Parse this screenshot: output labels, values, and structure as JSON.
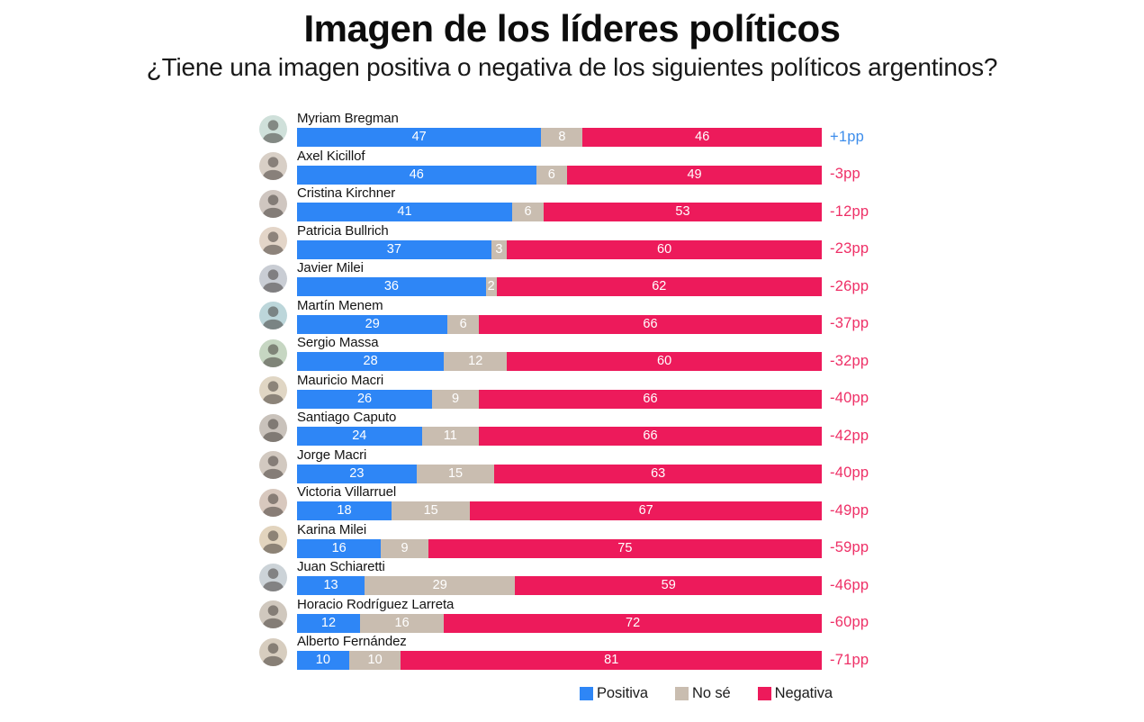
{
  "header": {
    "title": "Imagen de los líderes políticos",
    "subtitle": "¿Tiene una imagen positiva o negativa de los siguientes políticos argentinos?"
  },
  "legend": [
    {
      "label": "Positiva",
      "color": "#2e86f6"
    },
    {
      "label": "No sé",
      "color": "#c9bdb0"
    },
    {
      "label": "Negativa",
      "color": "#ed1a5b"
    }
  ],
  "colors": {
    "positiva": "#2e86f6",
    "no_se": "#c9bdb0",
    "negativa": "#ed1a5b",
    "net_positive_text": "#3d8deb",
    "net_negative_text": "#ee2f66"
  },
  "chart_data": {
    "type": "bar",
    "orientation": "horizontal",
    "stacked": true,
    "normalized_to_100": true,
    "title": "Imagen de los líderes políticos",
    "subtitle": "¿Tiene una imagen positiva o negativa de los siguientes políticos argentinos?",
    "series_names": [
      "Positiva",
      "No sé",
      "Negativa"
    ],
    "legend_position": "bottom-center",
    "grid": false,
    "rows": [
      {
        "name": "Myriam Bregman",
        "positiva": 47,
        "no_se": 8,
        "negativa": 46,
        "net": "+1pp"
      },
      {
        "name": "Axel Kicillof",
        "positiva": 46,
        "no_se": 6,
        "negativa": 49,
        "net": "-3pp"
      },
      {
        "name": "Cristina Kirchner",
        "positiva": 41,
        "no_se": 6,
        "negativa": 53,
        "net": "-12pp"
      },
      {
        "name": "Patricia Bullrich",
        "positiva": 37,
        "no_se": 3,
        "negativa": 60,
        "net": "-23pp"
      },
      {
        "name": "Javier Milei",
        "positiva": 36,
        "no_se": 2,
        "negativa": 62,
        "net": "-26pp"
      },
      {
        "name": "Martín Menem",
        "positiva": 29,
        "no_se": 6,
        "negativa": 66,
        "net": "-37pp"
      },
      {
        "name": "Sergio Massa",
        "positiva": 28,
        "no_se": 12,
        "negativa": 60,
        "net": "-32pp"
      },
      {
        "name": "Mauricio Macri",
        "positiva": 26,
        "no_se": 9,
        "negativa": 66,
        "net": "-40pp"
      },
      {
        "name": "Santiago Caputo",
        "positiva": 24,
        "no_se": 11,
        "negativa": 66,
        "net": "-42pp"
      },
      {
        "name": "Jorge Macri",
        "positiva": 23,
        "no_se": 15,
        "negativa": 63,
        "net": "-40pp"
      },
      {
        "name": "Victoria Villarruel",
        "positiva": 18,
        "no_se": 15,
        "negativa": 67,
        "net": "-49pp"
      },
      {
        "name": "Karina Milei",
        "positiva": 16,
        "no_se": 9,
        "negativa": 75,
        "net": "-59pp"
      },
      {
        "name": "Juan Schiaretti",
        "positiva": 13,
        "no_se": 29,
        "negativa": 59,
        "net": "-46pp"
      },
      {
        "name": "Horacio Rodríguez Larreta",
        "positiva": 12,
        "no_se": 16,
        "negativa": 72,
        "net": "-60pp"
      },
      {
        "name": "Alberto Fernández",
        "positiva": 10,
        "no_se": 10,
        "negativa": 81,
        "net": "-71pp"
      }
    ]
  }
}
